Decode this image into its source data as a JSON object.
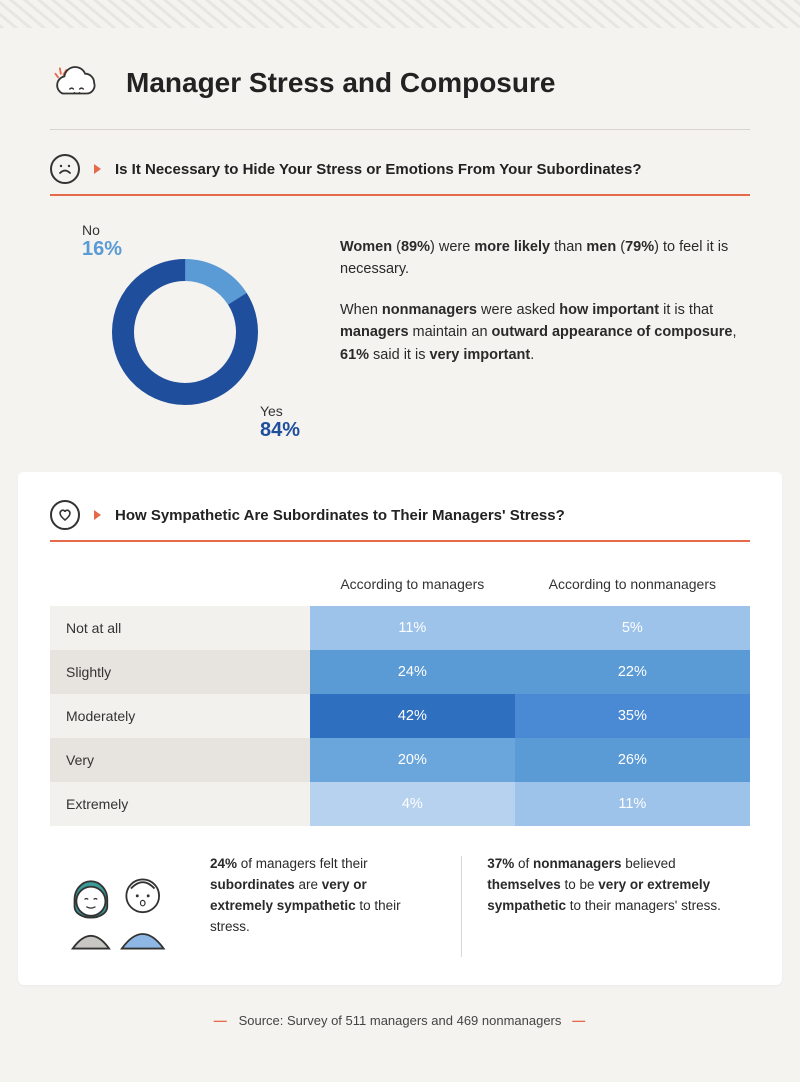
{
  "header": {
    "title": "Manager Stress and Composure"
  },
  "section1": {
    "question": "Is It Necessary to Hide Your Stress or Emotions From Your Subordinates?",
    "donut": {
      "type": "donut",
      "no_label": "No",
      "no_pct": "16%",
      "no_value": 16,
      "no_color": "#5b9bd5",
      "yes_label": "Yes",
      "yes_pct": "84%",
      "yes_value": 84,
      "yes_color": "#1f4e9c",
      "stroke_width": 22,
      "radius": 62
    },
    "para1": {
      "t1": "Women",
      "t2": " (",
      "t3": "89%",
      "t4": ") were ",
      "t5": "more likely",
      "t6": " than ",
      "t7": "men",
      "t8": " (",
      "t9": "79%",
      "t10": ") to feel it is necessary."
    },
    "para2": {
      "t1": "When ",
      "t2": "nonmanagers",
      "t3": " were asked ",
      "t4": "how important",
      "t5": " it is that ",
      "t6": "managers",
      "t7": " maintain an ",
      "t8": "outward appearance of composure",
      "t9": ", ",
      "t10": "61%",
      "t11": " said it is ",
      "t12": "very important",
      "t13": "."
    }
  },
  "section2": {
    "question": "How Sympathetic Are Subordinates to Their Managers' Stress?",
    "columns": [
      "",
      "According to managers",
      "According to nonmanagers"
    ],
    "rows": [
      {
        "label": "Not at all",
        "m": "11%",
        "n": "5%",
        "label_bg": "#f3f1ee",
        "m_bg": "#9dc3ea",
        "n_bg": "#9dc3ea"
      },
      {
        "label": "Slightly",
        "m": "24%",
        "n": "22%",
        "label_bg": "#e7e4df",
        "m_bg": "#5b9bd5",
        "n_bg": "#5b9bd5"
      },
      {
        "label": "Moderately",
        "m": "42%",
        "n": "35%",
        "label_bg": "#f3f1ee",
        "m_bg": "#2f6fc0",
        "n_bg": "#4a8ad4"
      },
      {
        "label": "Very",
        "m": "20%",
        "n": "26%",
        "label_bg": "#e7e4df",
        "m_bg": "#6aa6dc",
        "n_bg": "#5b9bd5"
      },
      {
        "label": "Extremely",
        "m": "4%",
        "n": "11%",
        "label_bg": "#f3f1ee",
        "m_bg": "#b7d2ee",
        "n_bg": "#9dc3ea"
      }
    ],
    "callout1": {
      "t1": "24%",
      "t2": " of managers felt their ",
      "t3": "subordinates",
      "t4": " are ",
      "t5": "very or extremely sympathetic",
      "t6": " to their stress."
    },
    "callout2": {
      "t1": "37%",
      "t2": " of ",
      "t3": "nonmanagers",
      "t4": " believed ",
      "t5": "themselves",
      "t6": " to be ",
      "t7": "very or extremely sympathetic",
      "t8": " to their managers' stress."
    }
  },
  "footer": {
    "text": "Source: Survey of 511 managers and 469 nonmanagers"
  },
  "colors": {
    "accent": "#e46a4a",
    "bg": "#f5f3f0",
    "card": "#ffffff",
    "text": "#2a2a2a",
    "rule": "#d8d5d0"
  }
}
